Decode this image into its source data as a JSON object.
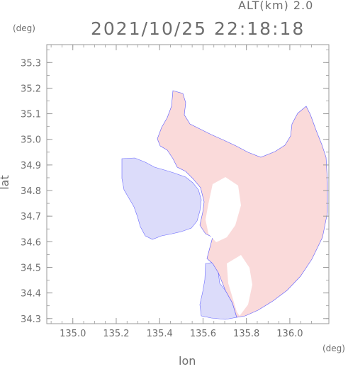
{
  "header": {
    "altitude": "ALT(km) 2.0",
    "datetime": "2021/10/25 22:18:18",
    "lat_unit": "(deg)",
    "lon_unit": "(deg)"
  },
  "axes": {
    "xlabel": "lon",
    "ylabel": "lat",
    "xlim": [
      134.88,
      136.18
    ],
    "ylim": [
      34.28,
      35.37
    ],
    "x_ticks": [
      "135.0",
      "135.2",
      "135.4",
      "135.6",
      "135.8",
      "136.0"
    ],
    "y_ticks": [
      "34.3",
      "34.4",
      "34.5",
      "34.6",
      "34.7",
      "34.8",
      "34.9",
      "35.0",
      "35.1",
      "35.2",
      "35.3"
    ]
  },
  "colors": {
    "frame": "#9a9a9a",
    "approaching": "#dcdcfa",
    "receding": "#fadada",
    "edge": "#3a3aff",
    "text": "#6e6e6e"
  },
  "regions": [
    {
      "name": "blue-west",
      "color": "approaching"
    },
    {
      "name": "pink-north",
      "color": "receding"
    },
    {
      "name": "pink-east",
      "color": "receding"
    },
    {
      "name": "blue-south",
      "color": "approaching"
    }
  ]
}
